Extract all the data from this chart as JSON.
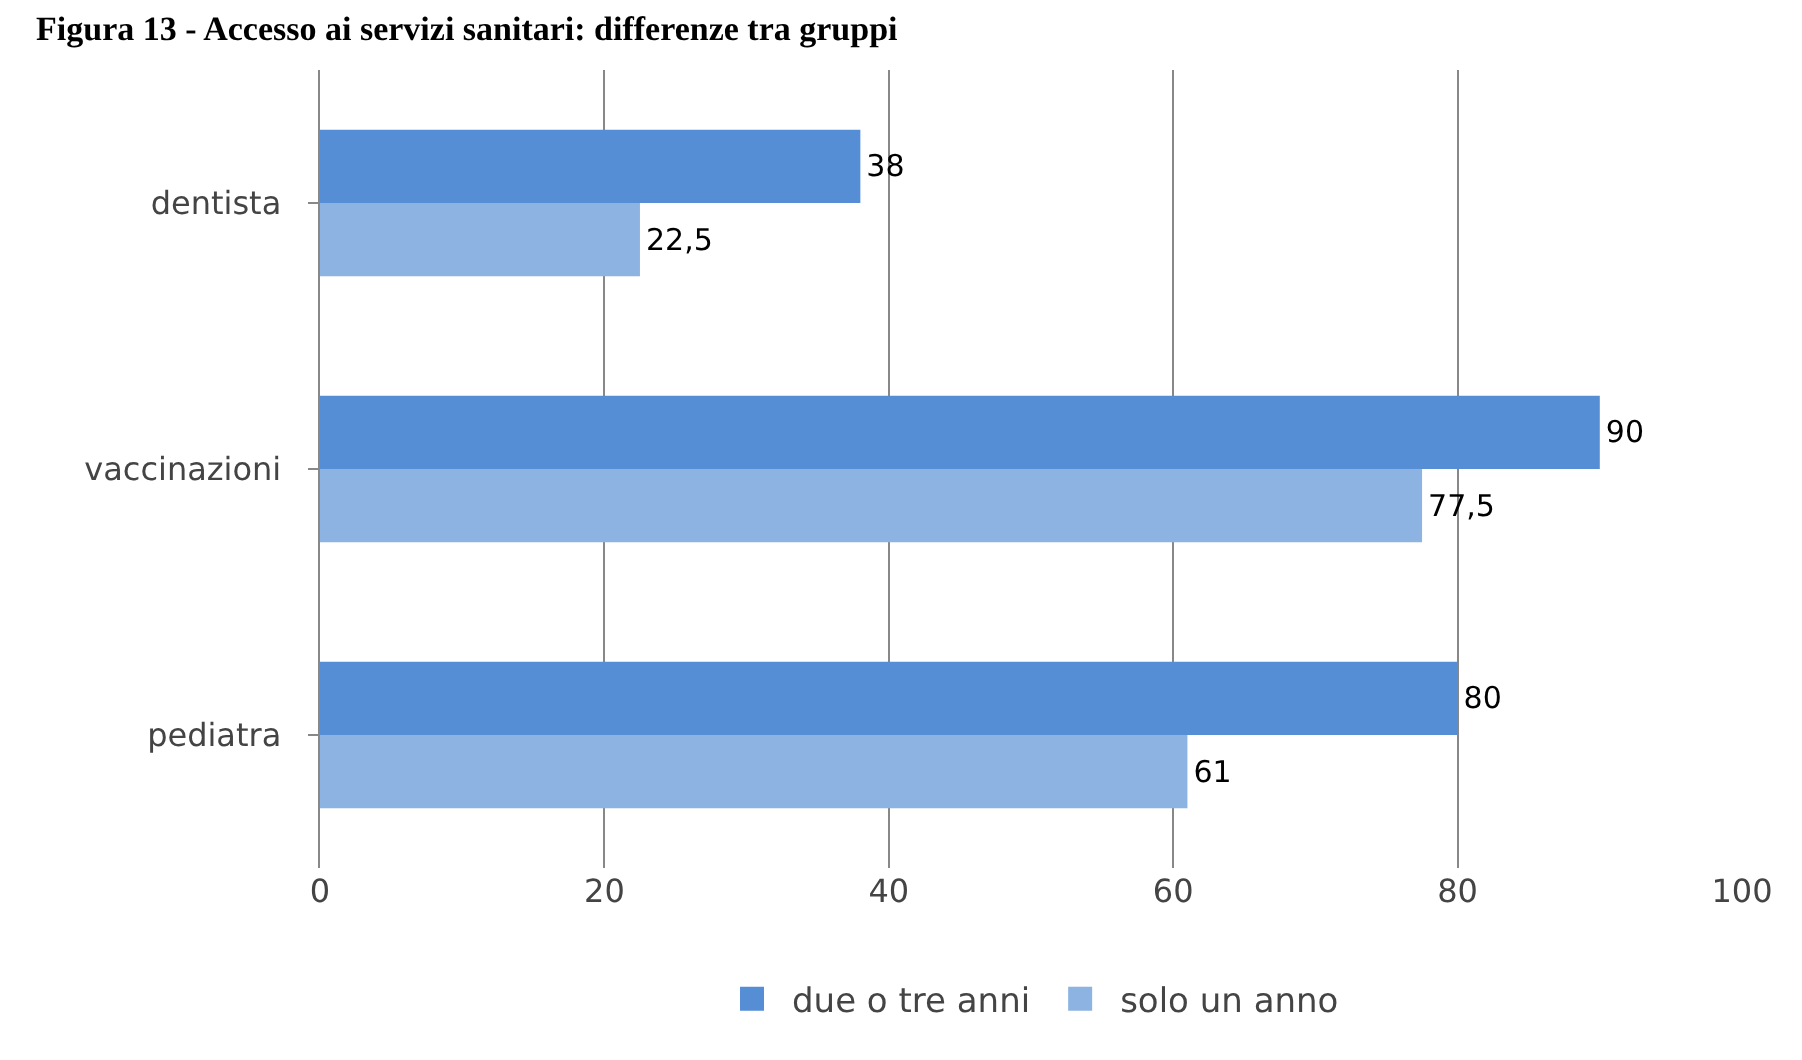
{
  "chart_data": {
    "type": "bar",
    "orientation": "horizontal",
    "title": "Figura 13 - Accesso ai servizi sanitari: differenze tra gruppi",
    "categories": [
      "dentista",
      "vaccinazioni",
      "pediatra"
    ],
    "series": [
      {
        "name": "due o tre anni",
        "color": "#558ed5",
        "values": [
          38,
          90,
          80
        ],
        "value_labels": [
          "38",
          "90",
          "80"
        ]
      },
      {
        "name": "solo un anno",
        "color": "#8db3e2",
        "values": [
          22.5,
          77.5,
          61
        ],
        "value_labels": [
          "22,5",
          "77,5",
          "61"
        ]
      }
    ],
    "xlim": [
      0,
      100
    ],
    "xticks": [
      0,
      20,
      40,
      60,
      80,
      100
    ],
    "grid": "x",
    "legend": "bottom"
  }
}
